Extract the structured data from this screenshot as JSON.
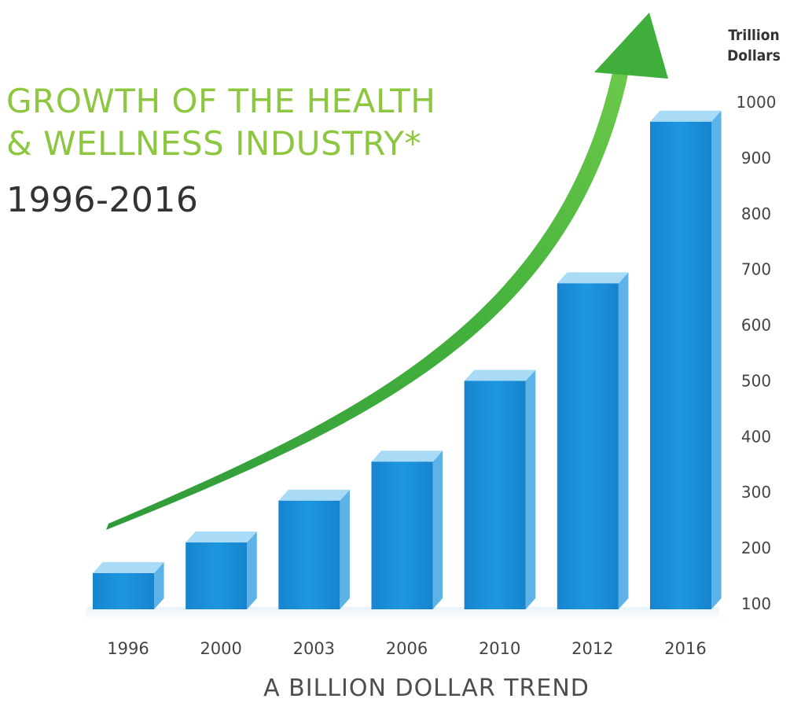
{
  "title": {
    "line1": "GROWTH OF THE HEALTH",
    "line2": "& WELLNESS INDUSTRY*",
    "line3": "1996-2016"
  },
  "unit_label": {
    "line1": "Trillion",
    "line2": "Dollars"
  },
  "footer": "A  BILLION DOLLAR TREND",
  "colors": {
    "bar": "#1a8fd8",
    "bar_top": "#a9dbf6",
    "bar_side": "#5db3e8",
    "arrow": "#4cb33a",
    "title_green": "#8dc63f",
    "text": "#333333"
  },
  "chart_data": {
    "type": "bar",
    "title": "GROWTH OF THE HEALTH & WELLNESS INDUSTRY* 1996-2016",
    "subtitle": "A  BILLION DOLLAR TREND",
    "ylabel": "Trillion Dollars",
    "xlabel": "",
    "categories": [
      "1996",
      "2000",
      "2003",
      "2006",
      "2010",
      "2012",
      "2016"
    ],
    "values": [
      155,
      210,
      285,
      355,
      500,
      675,
      965
    ],
    "ylim": [
      100,
      1000
    ],
    "yticks": [
      100,
      200,
      300,
      400,
      500,
      600,
      700,
      800,
      900,
      1000
    ],
    "y_axis_position": "right",
    "grid": false,
    "annotations": [
      "upward growth arrow"
    ]
  }
}
